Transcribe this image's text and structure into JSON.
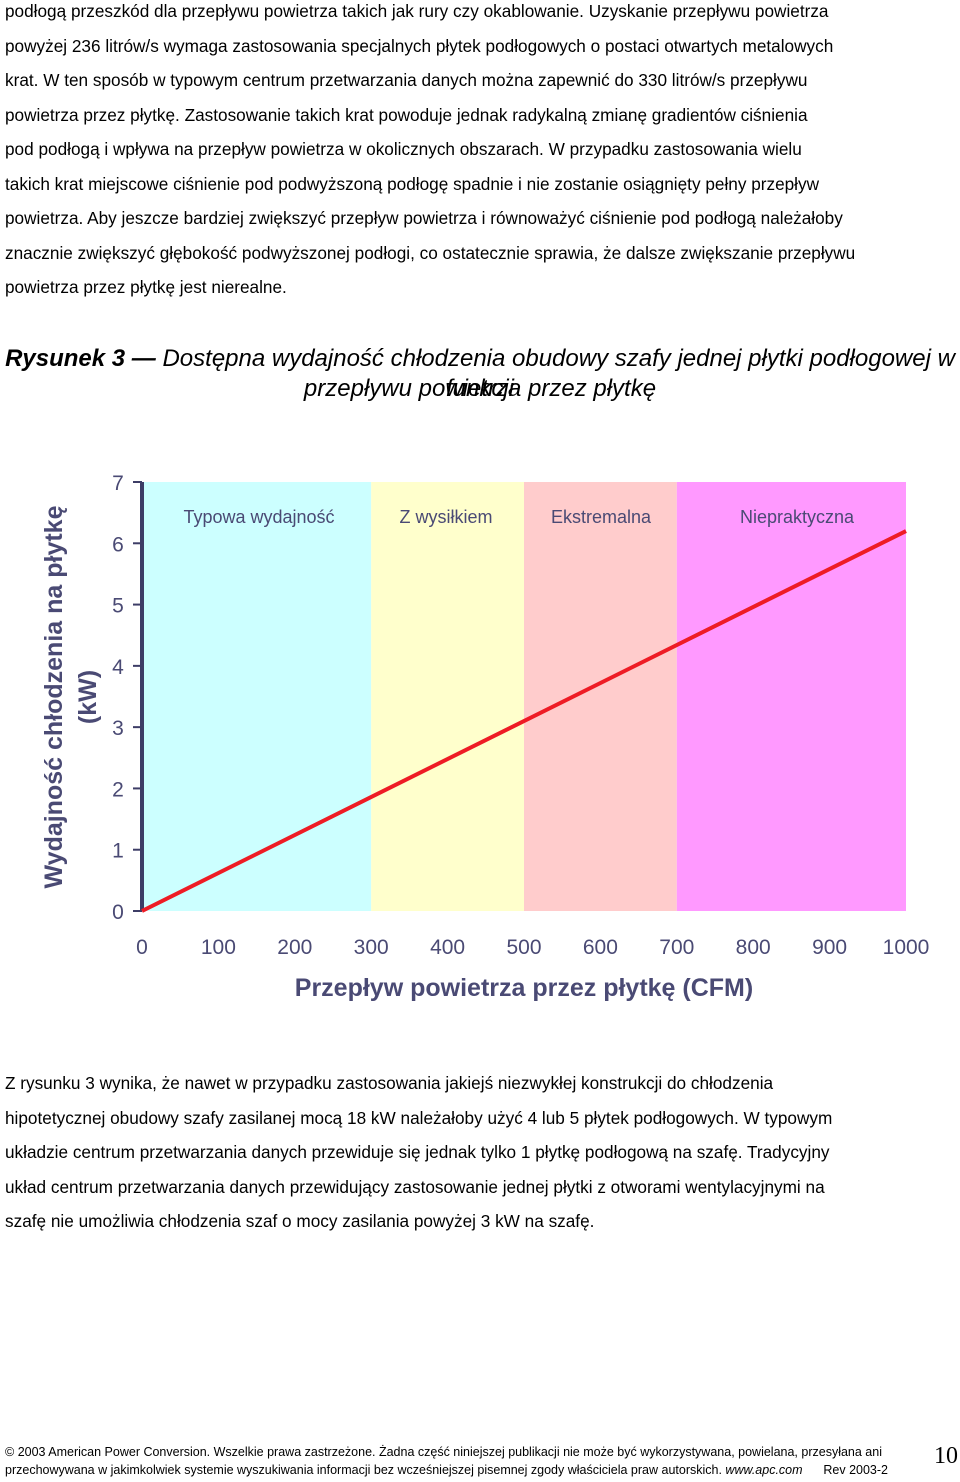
{
  "paragraph1": {
    "lines": [
      "podłogą przeszkód dla przepływu powietrza takich jak rury czy okablowanie. Uzyskanie przepływu powietrza",
      "powyżej 236 litrów/s wymaga zastosowania specjalnych płytek podłogowych o postaci otwartych metalowych",
      "krat. W ten sposób w typowym centrum przetwarzania danych można zapewnić do 330 litrów/s przepływu",
      "powietrza przez płytkę. Zastosowanie takich krat powoduje jednak radykalną zmianę gradientów ciśnienia",
      "pod podłogą i wpływa na przepływ powietrza w okolicznych obszarach. W przypadku zastosowania wielu",
      "takich krat miejscowe ciśnienie pod podwyższoną podłogę spadnie i nie zostanie osiągnięty pełny przepływ",
      "powietrza. Aby jeszcze bardziej zwiększyć przepływ powietrza i równoważyć ciśnienie pod podłogą należałoby",
      "znacznie zwiększyć głębokość podwyższonej podłogi, co ostatecznie sprawia, że dalsze zwiększanie przepływu",
      "powietrza przez płytkę jest nierealne."
    ]
  },
  "figure": {
    "label": "Rysunek 3 —",
    "title_line1": "Dostępna wydajność chłodzenia obudowy szafy jednej płytki podłogowej w funkcji",
    "title_line2": "przepływu powietrza przez płytkę"
  },
  "chart_data": {
    "type": "line",
    "xlabel": "Przepływ powietrza przez płytkę (CFM)",
    "ylabel": "Wydajność chłodzenia na płytkę (kW)",
    "ylabel_line1": "Wydajność chłodzenia na płytkę",
    "ylabel_line2": "(kW)",
    "xlim": [
      0,
      1000
    ],
    "ylim": [
      0,
      7
    ],
    "xticks": [
      0,
      100,
      200,
      300,
      400,
      500,
      600,
      700,
      800,
      900,
      1000
    ],
    "yticks": [
      0,
      1,
      2,
      3,
      4,
      5,
      6,
      7
    ],
    "series": [
      {
        "x": [
          0,
          1000
        ],
        "y": [
          0,
          6.2
        ],
        "color": "#ee1c25"
      }
    ],
    "bands": [
      {
        "label": "Typowa wydajność",
        "from": 0,
        "to": 300,
        "color": "#ccffff"
      },
      {
        "label": "Z wysiłkiem",
        "from": 300,
        "to": 500,
        "color": "#ffffcc"
      },
      {
        "label": "Ekstremalna",
        "from": 500,
        "to": 700,
        "color": "#ffcccc"
      },
      {
        "label": "Niepraktyczna",
        "from": 700,
        "to": 1000,
        "color": "#ff99ff"
      }
    ],
    "label_color": "#4a4a74",
    "axis_color": "#3d3d66",
    "grid": false
  },
  "paragraph2": {
    "lines": [
      "Z rysunku 3 wynika, że nawet w przypadku zastosowania jakiejś niezwykłej konstrukcji do chłodzenia",
      "hipotetycznej obudowy szafy zasilanej mocą 18 kW należałoby użyć 4 lub 5 płytek podłogowych. W typowym",
      "układzie centrum przetwarzania danych przewiduje się jednak tylko 1 płytkę podłogową na szafę. Tradycyjny",
      "układ centrum przetwarzania danych przewidujący zastosowanie jednej płytki z otworami wentylacyjnymi na",
      "szafę nie umożliwia chłodzenia szaf o mocy zasilania powyżej 3 kW na szafę."
    ]
  },
  "footer": {
    "line1": "2003 American Power Conversion. Wszelkie prawa zastrzeżone. Żadna część niniejszej publikacji nie może być wykorzystywana, powielana, przesyłana ani",
    "line2": "przechowywana w jakimkolwiek systemie wyszukiwania informacji bez wcześniejszej pisemnej zgody właściciela praw autorskich.",
    "url": "www.apc.com",
    "rev": "Rev 2003-2",
    "page_number": "10"
  }
}
